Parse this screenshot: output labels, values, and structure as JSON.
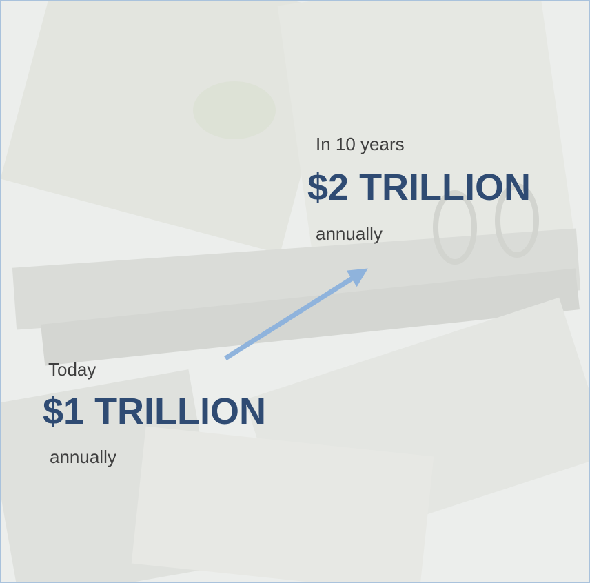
{
  "future": {
    "label": "In 10 years",
    "amount": "$2 TRILLION",
    "period": "annually"
  },
  "today": {
    "label": "Today",
    "amount": "$1 TRILLION",
    "period": "annually"
  }
}
